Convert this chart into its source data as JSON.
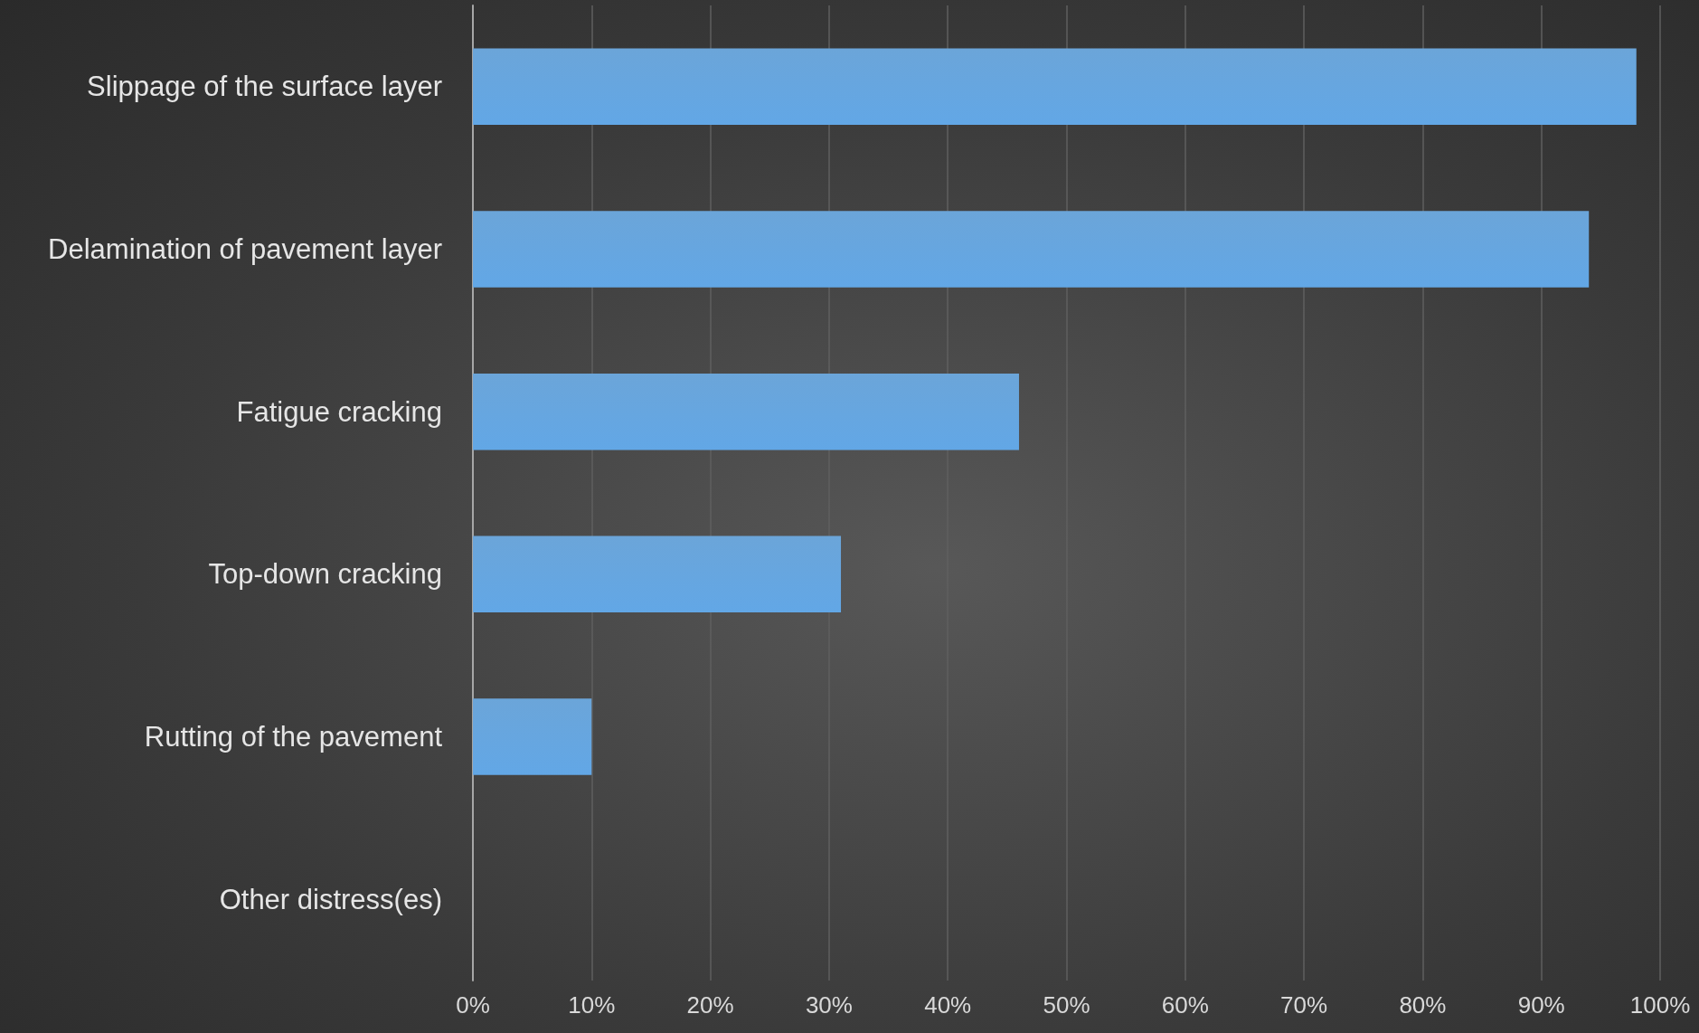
{
  "chart_data": {
    "type": "bar",
    "orientation": "horizontal",
    "categories": [
      "Slippage of the surface layer",
      "Delamination of pavement layer",
      "Fatigue cracking",
      "Top-down cracking",
      "Rutting of the pavement",
      "Other distress(es)"
    ],
    "values": [
      98,
      94,
      46,
      31,
      10,
      0
    ],
    "color": "#5b9bd5",
    "xlim": [
      0,
      100
    ],
    "xticks": [
      {
        "value": 0,
        "label": "0%"
      },
      {
        "value": 10,
        "label": "10%"
      },
      {
        "value": 20,
        "label": "20%"
      },
      {
        "value": 30,
        "label": "30%"
      },
      {
        "value": 40,
        "label": "40%"
      },
      {
        "value": 50,
        "label": "50%"
      },
      {
        "value": 60,
        "label": "60%"
      },
      {
        "value": 70,
        "label": "70%"
      },
      {
        "value": 80,
        "label": "80%"
      },
      {
        "value": 90,
        "label": "90%"
      },
      {
        "value": 100,
        "label": "100%"
      }
    ],
    "grid": "x"
  }
}
